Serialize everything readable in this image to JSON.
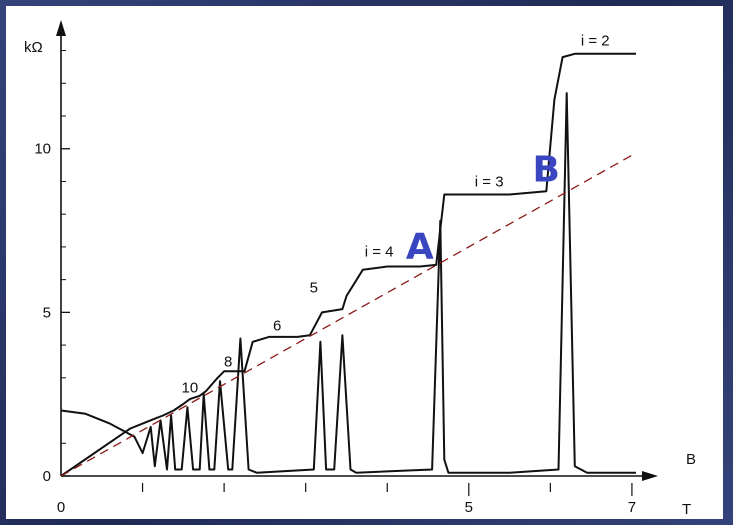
{
  "chart_data": {
    "type": "line",
    "title": "",
    "y_axis": {
      "unit_label": "kΩ",
      "range": [
        0,
        13.2
      ],
      "ticks": [
        0,
        5,
        10
      ],
      "tick_labels": [
        "0",
        "5",
        "10"
      ]
    },
    "x_axis": {
      "symbol": "B",
      "unit": "T",
      "range": [
        0,
        7.05
      ],
      "labeled_ticks": [
        0,
        5,
        7
      ],
      "tick_labels": [
        "0",
        "5",
        "7"
      ],
      "minor_ticks": [
        1,
        2,
        3,
        4,
        6
      ]
    },
    "grid": false,
    "legend": "none",
    "colors": {
      "curve": "#111111",
      "dashed_line": "#8b1a1a",
      "marker": "#3a45c0"
    },
    "series": [
      {
        "role": "hall-resistance",
        "x": [
          0,
          0.85,
          1.0,
          1.15,
          1.25,
          1.38,
          1.5,
          1.58,
          1.7,
          1.78,
          1.92,
          2.0,
          2.25,
          2.35,
          2.55,
          2.65,
          2.9,
          3.05,
          3.2,
          3.45,
          3.5,
          3.7,
          4.0,
          4.4,
          4.6,
          4.7,
          5.0,
          5.5,
          5.95,
          6.05,
          6.15,
          6.3,
          7.05
        ],
        "y": [
          0,
          1.45,
          1.6,
          1.75,
          1.85,
          2.0,
          2.2,
          2.35,
          2.45,
          2.6,
          3.0,
          3.2,
          3.2,
          4.1,
          4.25,
          4.25,
          4.25,
          4.3,
          5.0,
          5.1,
          5.5,
          6.3,
          6.4,
          6.4,
          6.45,
          8.6,
          8.6,
          8.6,
          8.7,
          11.5,
          12.8,
          12.9,
          12.9
        ]
      },
      {
        "role": "longitudinal-resistance",
        "x": [
          0,
          0.3,
          0.6,
          0.9,
          1.0,
          1.1,
          1.15,
          1.22,
          1.3,
          1.35,
          1.4,
          1.48,
          1.55,
          1.62,
          1.7,
          1.75,
          1.82,
          1.88,
          1.95,
          2.05,
          2.1,
          2.2,
          2.3,
          2.4,
          3.1,
          3.18,
          3.25,
          3.35,
          3.45,
          3.55,
          3.62,
          4.55,
          4.65,
          4.7,
          4.75,
          4.85,
          5.5,
          6.1,
          6.2,
          6.3,
          6.45,
          7.05
        ],
        "y": [
          2.0,
          1.9,
          1.6,
          1.2,
          0.7,
          1.5,
          0.3,
          1.7,
          0.2,
          1.85,
          0.2,
          0.2,
          2.1,
          0.2,
          0.2,
          2.5,
          0.2,
          0.2,
          2.9,
          0.2,
          0.2,
          4.2,
          0.2,
          0.1,
          0.2,
          4.1,
          0.2,
          0.2,
          4.3,
          0.2,
          0.1,
          0.2,
          7.8,
          0.5,
          0.1,
          0.1,
          0.1,
          0.2,
          11.7,
          0.3,
          0.1,
          0.1
        ]
      }
    ],
    "reference_line": {
      "style": "dashed",
      "from": [
        0,
        0
      ],
      "to": [
        7.0,
        9.8
      ]
    },
    "annotations": {
      "plateau_labels": [
        {
          "text": "10",
          "x": 1.58,
          "y": 2.55
        },
        {
          "text": "8",
          "x": 2.05,
          "y": 3.35
        },
        {
          "text": "6",
          "x": 2.65,
          "y": 4.45
        },
        {
          "text": "5",
          "x": 3.1,
          "y": 5.6
        },
        {
          "text": "i = 4",
          "x": 3.9,
          "y": 6.7
        },
        {
          "text": "i = 3",
          "x": 5.25,
          "y": 8.85
        },
        {
          "text": "i = 2",
          "x": 6.55,
          "y": 13.15
        }
      ],
      "markers": [
        {
          "text": "A",
          "x": 4.4,
          "y": 6.65
        },
        {
          "text": "B",
          "x": 5.95,
          "y": 9.0
        }
      ]
    }
  }
}
